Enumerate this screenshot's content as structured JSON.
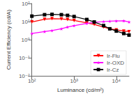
{
  "chart_data": {
    "type": "line",
    "xlabel": "Luminance (cd/m²)",
    "ylabel": "Current Efficiency (cd/A)",
    "log": true,
    "grid": false,
    "legend": "lower right",
    "xlim": [
      100,
      20000
    ],
    "ylim": [
      0.01,
      100
    ],
    "xticks": [
      {
        "value": 100,
        "label": "10²"
      },
      {
        "value": 1000,
        "label": "10³"
      },
      {
        "value": 10000,
        "label": "10⁴"
      }
    ],
    "yticks": [
      {
        "value": 0.01,
        "label": "10⁻²"
      },
      {
        "value": 0.1,
        "label": "10⁻¹"
      },
      {
        "value": 1,
        "label": "10⁰"
      },
      {
        "value": 10,
        "label": "10¹"
      },
      {
        "value": 100,
        "label": "10²"
      }
    ],
    "series": [
      {
        "name": "Ir-Flu",
        "color": "#ff0000",
        "marker": "triangle_down",
        "x": [
          100,
          200,
          300,
          500,
          700,
          1000,
          2000,
          3000,
          5000,
          7000,
          10000,
          15000,
          20000
        ],
        "values": [
          9.5,
          13.5,
          14.5,
          14.0,
          13.0,
          11.5,
          8.5,
          7.0,
          5.0,
          4.0,
          3.5,
          3.0,
          2.8
        ]
      },
      {
        "name": "Ir-OXD",
        "color": "#ff00ff",
        "marker": "star",
        "x": [
          100,
          200,
          300,
          500,
          700,
          1000,
          2000,
          3000,
          5000,
          7000,
          10000,
          15000,
          20000
        ],
        "values": [
          2.2,
          2.8,
          3.2,
          4.0,
          5.0,
          6.0,
          8.0,
          9.0,
          10.0,
          10.5,
          10.8,
          11.0,
          9.5
        ]
      },
      {
        "name": "Ir-Cz",
        "color": "#000000",
        "marker": "square",
        "x": [
          100,
          200,
          300,
          500,
          700,
          1000,
          2000,
          3000,
          5000,
          7000,
          10000,
          15000,
          20000
        ],
        "values": [
          20.0,
          24.0,
          25.0,
          24.0,
          22.0,
          19.0,
          13.0,
          9.5,
          6.0,
          4.0,
          3.0,
          2.2,
          1.8
        ]
      }
    ]
  }
}
